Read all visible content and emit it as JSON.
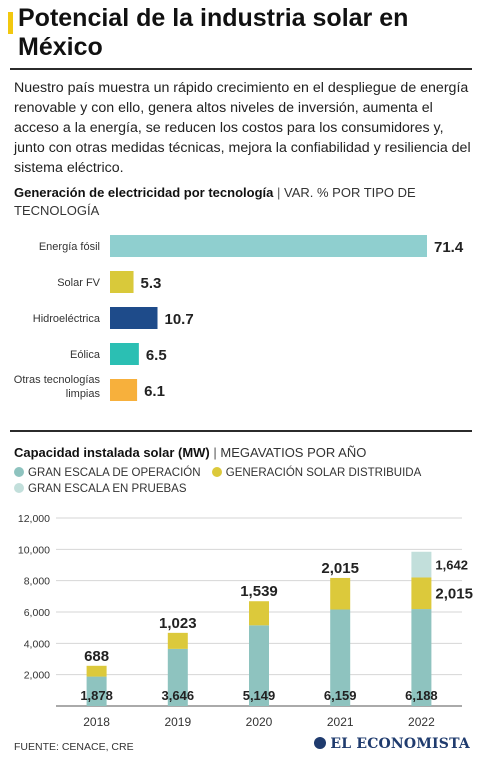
{
  "header": {
    "title": "Potencial de la industria solar en México",
    "intro": "Nuestro país muestra un rápido crecimiento en el despliegue de energía renovable y con ello, genera altos niveles de inversión, aumenta el acceso a la energía, se reducen los costos para los consumidores y, junto con otras medidas técnicas, mejora la confiabilidad y resiliencia del sistema eléctrico.",
    "accent_color": "#f2c80f"
  },
  "section1": {
    "title_bold": "Generación de electricidad por tecnología",
    "separator": "|",
    "title_rest": "VAR. % POR TIPO DE TECNOLOGÍA"
  },
  "section2": {
    "title_bold": "Capacidad instalada solar (MW)",
    "separator": "|",
    "title_rest": "MEGAVATIOS POR AÑO"
  },
  "footer": {
    "source": "FUENTE: CENACE, CRE",
    "brand": "EL ECONOMISTA",
    "brand_color": "#1f3b6e"
  },
  "chart_data": [
    {
      "type": "bar",
      "orientation": "horizontal",
      "categories": [
        "Energía fósil",
        "Solar FV",
        "Hidroeléctrica",
        "Eólica",
        "Otras tecnologías limpias"
      ],
      "values": [
        71.4,
        5.3,
        10.7,
        6.5,
        6.1
      ],
      "value_labels": [
        "71.4",
        "5.3",
        "10.7",
        "6.5",
        "6.1"
      ],
      "colors": [
        "#8fcfcf",
        "#d9c93a",
        "#1e4b8a",
        "#2bbfb3",
        "#f7b03c"
      ],
      "xlim": [
        0,
        71.4
      ]
    },
    {
      "type": "bar",
      "stacked": true,
      "categories": [
        "2018",
        "2019",
        "2020",
        "2021",
        "2022"
      ],
      "ylim": [
        0,
        12000
      ],
      "yticks": [
        "12,000",
        "10,000",
        "8,000",
        "6,000",
        "4,000",
        "2,000"
      ],
      "grid": true,
      "legend_position": "top",
      "series": [
        {
          "name": "GRAN ESCALA DE OPERACIÓN",
          "color": "#8ec3bf",
          "values": [
            1878,
            3646,
            5149,
            6159,
            6188
          ],
          "labels": [
            "1,878",
            "3,646",
            "5,149",
            "6,159",
            "6,188"
          ]
        },
        {
          "name": "GENERACIÓN SOLAR DISTRIBUIDA",
          "color": "#dcc93b",
          "values": [
            688,
            1023,
            1539,
            2015,
            2015
          ],
          "labels": [
            "688",
            "1,023",
            "1,539",
            "2,015",
            "2,015"
          ]
        },
        {
          "name": "GRAN ESCALA EN PRUEBAS",
          "color": "#c2dfdb",
          "values": [
            0,
            0,
            0,
            0,
            1642
          ],
          "labels": [
            "",
            "",
            "",
            "",
            "1,642"
          ]
        }
      ]
    }
  ]
}
